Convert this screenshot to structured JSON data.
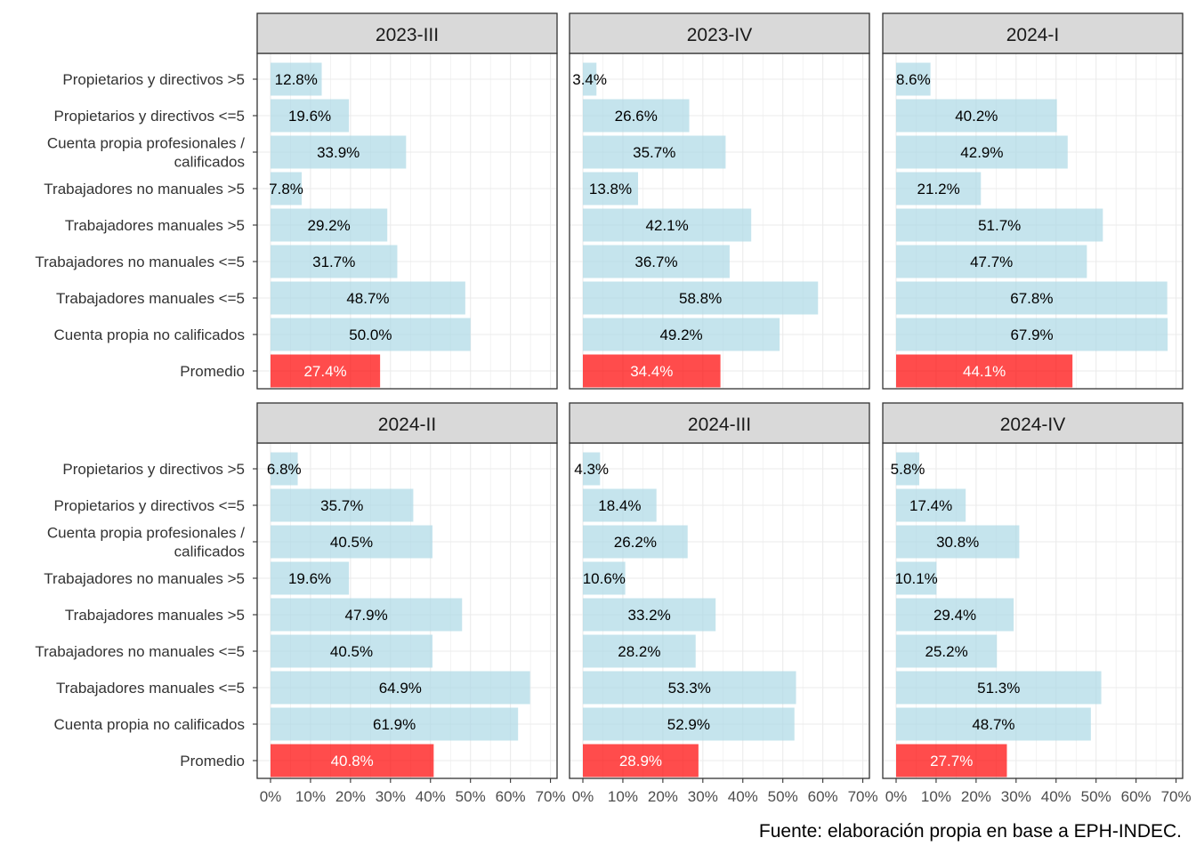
{
  "chart_data": {
    "type": "bar",
    "orientation": "horizontal",
    "facet_layout": "2x3 grid",
    "categories": [
      "Propietarios y directivos >5",
      "Propietarios y directivos <=5",
      "Cuenta propia profesionales /\ncalificados",
      "Trabajadores no manuales >5",
      "Trabajadores manuales >5",
      "Trabajadores no manuales <=5",
      "Trabajadores manuales <=5",
      "Cuenta propia no calificados",
      "Promedio"
    ],
    "highlight_category": "Promedio",
    "colors": {
      "bar": "#add8e6",
      "highlight": "#ff0000",
      "strip_bg": "#d9d9d9",
      "grid": "#ebebeb",
      "panel_border": "#333333"
    },
    "bar_opacity": 0.7,
    "xlim": [
      0,
      70
    ],
    "x_ticks": [
      "0%",
      "10%",
      "20%",
      "30%",
      "40%",
      "50%",
      "60%",
      "70%"
    ],
    "grid": true,
    "panels": [
      {
        "title": "2023-III",
        "values": [
          12.8,
          19.6,
          33.9,
          7.8,
          29.2,
          31.7,
          48.7,
          50.0,
          27.4
        ],
        "labels": [
          "12.8%",
          "19.6%",
          "33.9%",
          "7.8%",
          "29.2%",
          "31.7%",
          "48.7%",
          "50.0%",
          "27.4%"
        ]
      },
      {
        "title": "2023-IV",
        "values": [
          3.4,
          26.6,
          35.7,
          13.8,
          42.1,
          36.7,
          58.8,
          49.2,
          34.4
        ],
        "labels": [
          "3.4%",
          "26.6%",
          "35.7%",
          "13.8%",
          "42.1%",
          "36.7%",
          "58.8%",
          "49.2%",
          "34.4%"
        ]
      },
      {
        "title": "2024-I",
        "values": [
          8.6,
          40.2,
          42.9,
          21.2,
          51.7,
          47.7,
          67.8,
          67.9,
          44.1
        ],
        "labels": [
          "8.6%",
          "40.2%",
          "42.9%",
          "21.2%",
          "51.7%",
          "47.7%",
          "67.8%",
          "67.9%",
          "44.1%"
        ]
      },
      {
        "title": "2024-II",
        "values": [
          6.8,
          35.7,
          40.5,
          19.6,
          47.9,
          40.5,
          64.9,
          61.9,
          40.8
        ],
        "labels": [
          "6.8%",
          "35.7%",
          "40.5%",
          "19.6%",
          "47.9%",
          "40.5%",
          "64.9%",
          "61.9%",
          "40.8%"
        ]
      },
      {
        "title": "2024-III",
        "values": [
          4.3,
          18.4,
          26.2,
          10.6,
          33.2,
          28.2,
          53.3,
          52.9,
          28.9
        ],
        "labels": [
          "4.3%",
          "18.4%",
          "26.2%",
          "10.6%",
          "33.2%",
          "28.2%",
          "53.3%",
          "52.9%",
          "28.9%"
        ]
      },
      {
        "title": "2024-IV",
        "values": [
          5.8,
          17.4,
          30.8,
          10.1,
          29.4,
          25.2,
          51.3,
          48.7,
          27.7
        ],
        "labels": [
          "5.8%",
          "17.4%",
          "30.8%",
          "10.1%",
          "29.4%",
          "25.2%",
          "51.3%",
          "48.7%",
          "27.7%"
        ]
      }
    ],
    "caption": "Fuente: elaboración propia en base a EPH-INDEC."
  }
}
